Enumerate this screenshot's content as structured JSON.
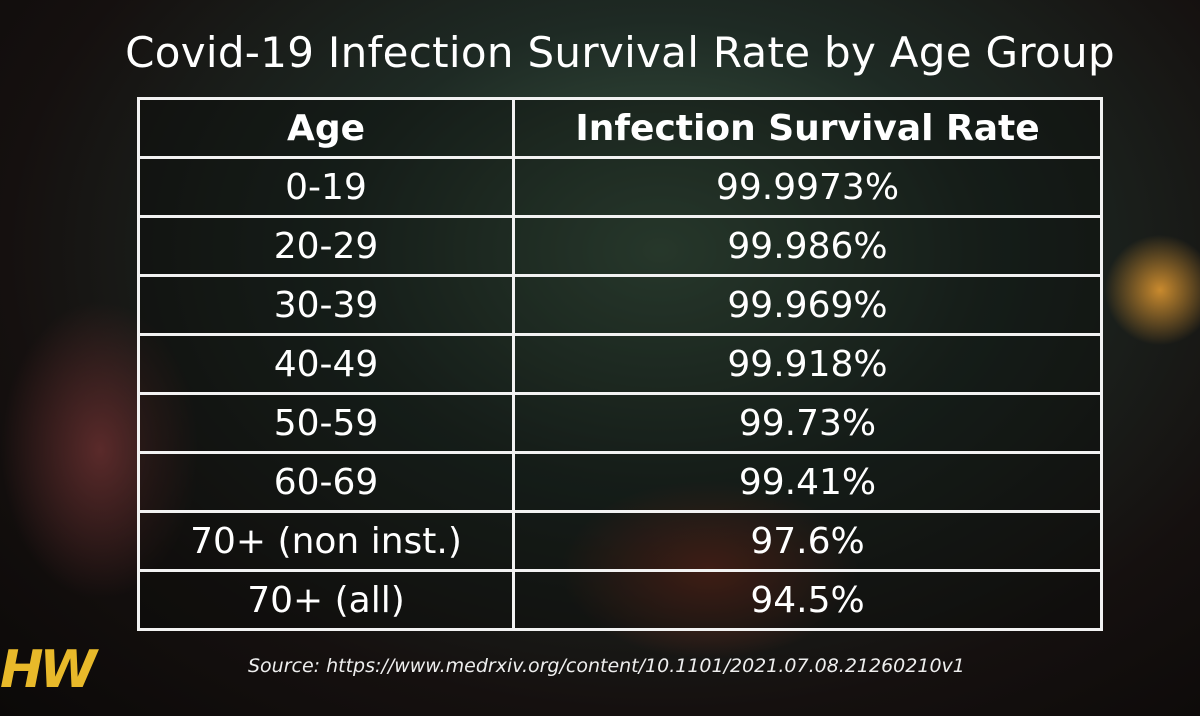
{
  "chart_data": {
    "type": "table",
    "title": "Covid-19 Infection Survival Rate by Age Group",
    "columns": [
      "Age",
      "Infection Survival Rate"
    ],
    "rows": [
      [
        "0-19",
        "99.9973%"
      ],
      [
        "20-29",
        "99.986%"
      ],
      [
        "30-39",
        "99.969%"
      ],
      [
        "40-49",
        "99.918%"
      ],
      [
        "50-59",
        "99.73%"
      ],
      [
        "60-69",
        "99.41%"
      ],
      [
        "70+ (non inst.)",
        "97.6%"
      ],
      [
        "70+ (all)",
        "94.5%"
      ]
    ],
    "source": "Source: https://www.medrxiv.org/content/10.1101/2021.07.08.21260210v1"
  },
  "logo": "HW"
}
